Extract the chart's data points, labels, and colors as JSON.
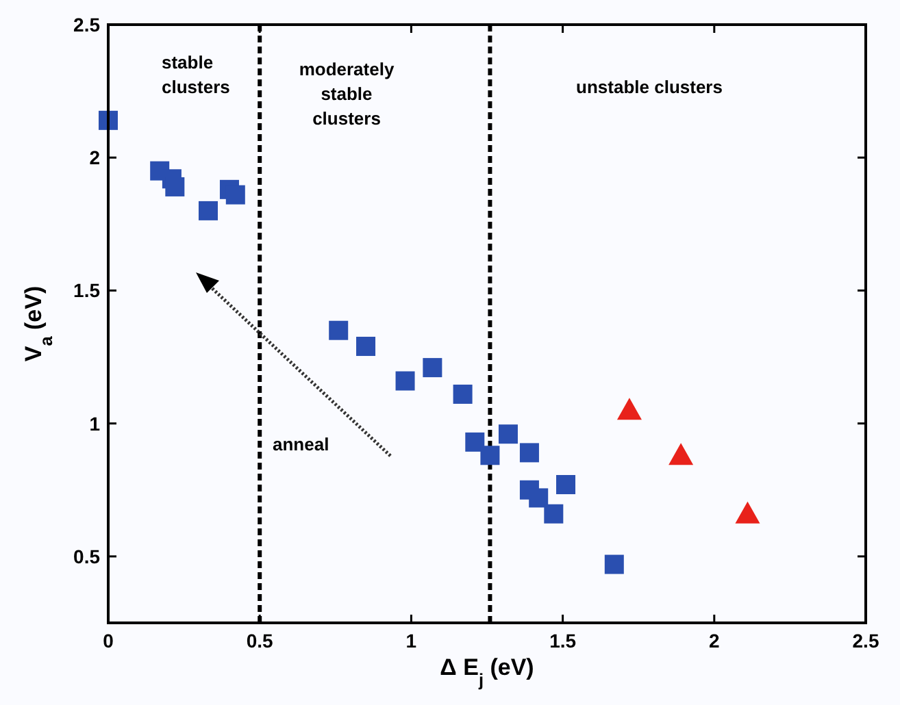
{
  "chart_data": {
    "type": "scatter",
    "xlabel": "Δ E$_{j}$ (eV)",
    "ylabel": "V$_{a}$ (eV)",
    "xlim": [
      0,
      2.5
    ],
    "ylim": [
      0.25,
      2.5
    ],
    "xticks": [
      0,
      0.5,
      1,
      1.5,
      2,
      2.5
    ],
    "yticks": [
      0.5,
      1,
      1.5,
      2,
      2.5
    ],
    "grid": false,
    "series": [
      {
        "color": "#2a4fb0",
        "marker": "square",
        "x": [
          0,
          0.17,
          0.21,
          0.22,
          0.33,
          0.4,
          0.42,
          0.76,
          0.85,
          0.98,
          1.07,
          1.17,
          1.21,
          1.26,
          1.32,
          1.39,
          1.39,
          1.42,
          1.47,
          1.51,
          1.67
        ],
        "values": [
          2.14,
          1.95,
          1.92,
          1.89,
          1.8,
          1.88,
          1.86,
          1.35,
          1.29,
          1.16,
          1.21,
          1.11,
          0.93,
          0.88,
          0.96,
          0.89,
          0.75,
          0.72,
          0.66,
          0.77,
          0.47
        ]
      },
      {
        "color": "#e8221b",
        "marker": "triangle",
        "x": [
          1.72,
          1.89,
          2.11
        ],
        "values": [
          1.05,
          0.88,
          0.66
        ]
      }
    ],
    "ref_lines": [
      {
        "axis": "x",
        "value": 0.5,
        "line_style": "dashed",
        "color": "#000000"
      },
      {
        "axis": "x",
        "value": 1.26,
        "line_style": "dashed",
        "color": "#000000"
      }
    ],
    "annotations": [
      "stable\nclusters",
      "moderately\nstable\nclusters",
      "unstable clusters",
      "anneal"
    ]
  }
}
